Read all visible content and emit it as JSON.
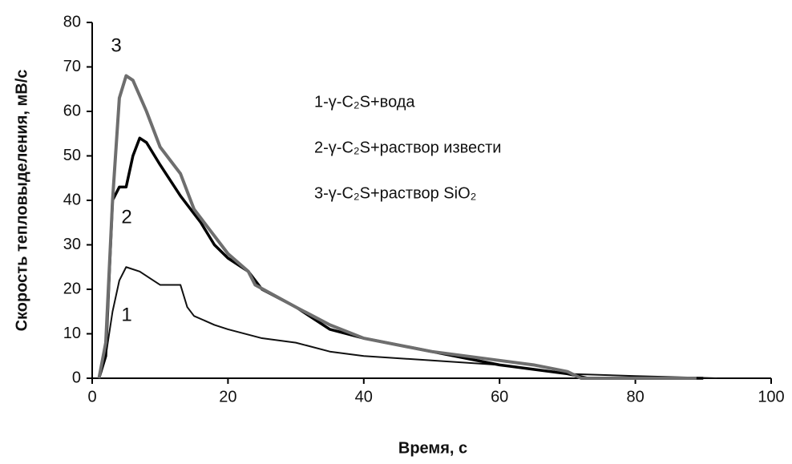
{
  "chart_data": {
    "type": "line",
    "xlabel": "Время, с",
    "ylabel": "Скорость тепловыделения, мВ/с",
    "xlim": [
      0,
      100
    ],
    "xticks": [
      0,
      20,
      40,
      60,
      80,
      100
    ],
    "ylim": [
      0,
      80
    ],
    "yticks": [
      0,
      10,
      20,
      30,
      40,
      50,
      60,
      70,
      80
    ],
    "grid": false,
    "annotations": [
      "3",
      "2",
      "1"
    ],
    "series": [
      {
        "name": "1-γ-C₂S+вода",
        "color": "#111111",
        "x": [
          1,
          2,
          3,
          4,
          5,
          7,
          9,
          10,
          13,
          14,
          15,
          18,
          20,
          25,
          30,
          35,
          40,
          50,
          60,
          70,
          80,
          92
        ],
        "values": [
          0,
          5,
          15,
          22,
          25,
          24,
          22,
          21,
          21,
          16,
          14,
          12,
          11,
          9,
          8,
          6,
          5,
          4,
          3,
          1,
          0.5,
          0
        ]
      },
      {
        "name": "2-γ-C₂S+раствор извести",
        "color": "#000000",
        "x": [
          1,
          2,
          3,
          4,
          5,
          6,
          7,
          8,
          10,
          13,
          16,
          18,
          20,
          23,
          25,
          30,
          35,
          40,
          50,
          60,
          65,
          70,
          73,
          80,
          90
        ],
        "values": [
          0,
          5,
          40,
          43,
          43,
          50,
          54,
          53,
          48,
          41,
          35,
          30,
          27,
          24,
          20,
          16,
          11,
          9,
          6,
          3,
          2,
          1,
          0,
          0,
          0
        ]
      },
      {
        "name": "3-γ-C₂S+раствор SiO₂",
        "color": "#6e6e6e",
        "x": [
          1,
          2,
          3,
          4,
          5,
          6,
          8,
          10,
          12,
          13,
          15,
          17,
          20,
          23,
          24,
          30,
          35,
          40,
          50,
          60,
          65,
          70,
          72,
          80,
          89
        ],
        "values": [
          0,
          8,
          40,
          63,
          68,
          67,
          60,
          52,
          48,
          46,
          38,
          34,
          28,
          24,
          21,
          16,
          12,
          9,
          6,
          4,
          3,
          1.5,
          0,
          0,
          0
        ]
      }
    ]
  }
}
